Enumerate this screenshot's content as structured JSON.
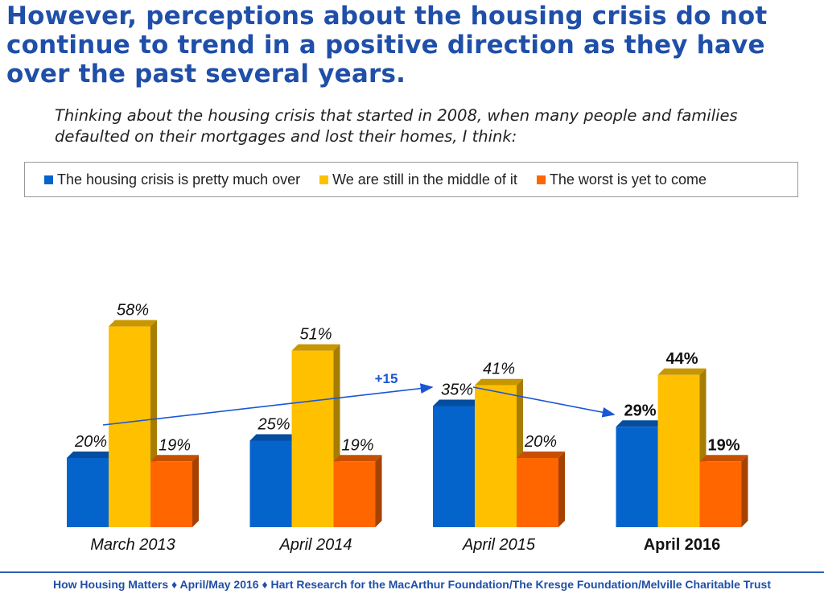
{
  "title": "However, perceptions about the housing crisis do not continue to trend in a positive direction as they have over the past several years.",
  "subtitle": "Thinking about the housing crisis that started in 2008, when many people and families defaulted on their mortgages and lost their homes, I think:",
  "footer": "How Housing Matters ♦ April/May 2016 ♦ Hart Research for the MacArthur Foundation/The Kresge Foundation/Melville Charitable Trust",
  "chart_data": {
    "type": "bar",
    "categories": [
      "March 2013",
      "April 2014",
      "April 2015",
      "April 2016"
    ],
    "series": [
      {
        "name": "The housing crisis is pretty much over",
        "values": [
          20,
          25,
          35,
          29
        ],
        "color": "#0563cc"
      },
      {
        "name": "We are still in the middle of it",
        "values": [
          58,
          51,
          41,
          44
        ],
        "color": "#ffc000"
      },
      {
        "name": "The worst is yet to come",
        "values": [
          19,
          19,
          20,
          19
        ],
        "color": "#ff6600"
      }
    ],
    "value_labels_suffix": "%",
    "highlight_category": "April 2016",
    "annotation": "+15",
    "legend_position": "top",
    "grid": false,
    "ylim": [
      0,
      60
    ]
  }
}
